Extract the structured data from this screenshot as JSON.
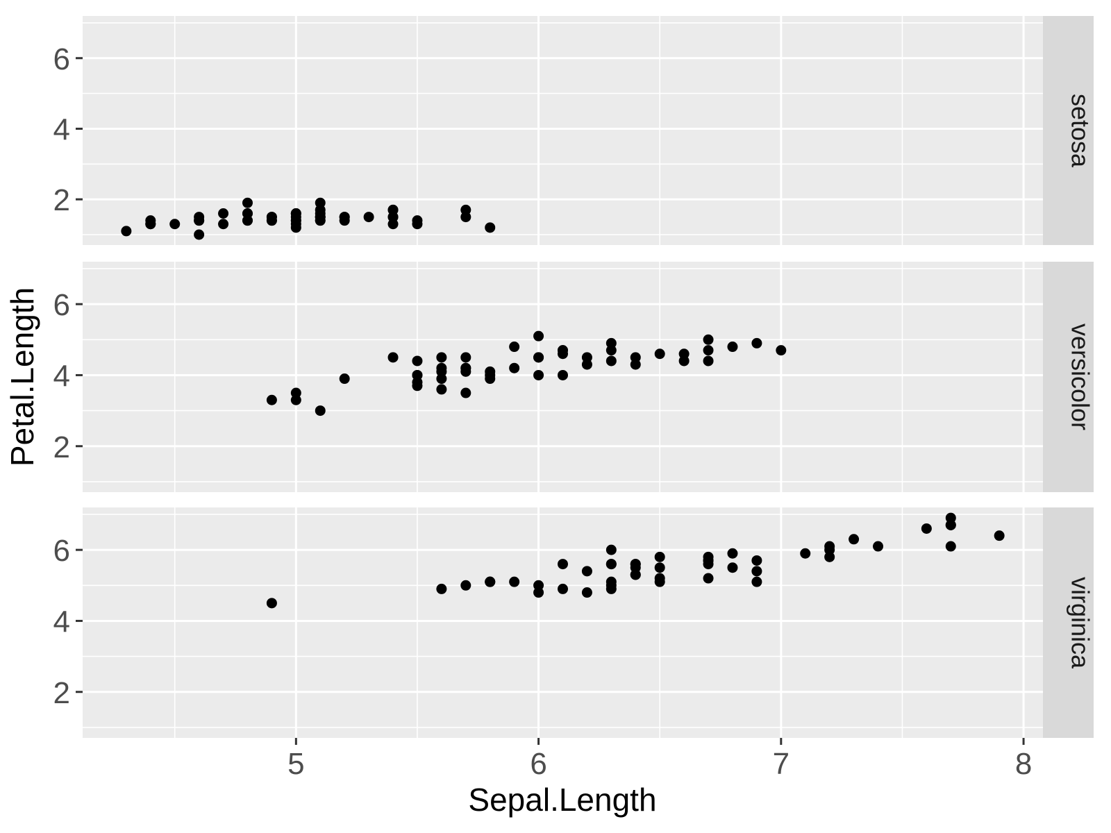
{
  "colors": {
    "figure_background": "#FFFFFF",
    "panel_background": "#EBEBEB",
    "strip_background": "#D9D9D9",
    "gridline": "#FFFFFF",
    "point": "#000000",
    "tick_label": "#4D4D4D",
    "tick_mark": "#333333",
    "axis_title": "#000000",
    "strip_text": "#1A1A1A"
  },
  "chart_data": {
    "type": "scatter",
    "title": "",
    "xlabel": "Sepal.Length",
    "ylabel": "Petal.Length",
    "facet_variable_values": [
      "setosa",
      "versicolor",
      "virginica"
    ],
    "x_ticks": [
      5,
      6,
      7,
      8
    ],
    "y_ticks": [
      2,
      4,
      6
    ],
    "x_minor_gridlines": [
      4.5,
      5.5,
      6.5,
      7.5
    ],
    "y_minor_gridlines": [
      1,
      3,
      5,
      7
    ],
    "xlim": [
      4.12,
      8.08
    ],
    "ylim": [
      0.705,
      7.195
    ],
    "grid": "on",
    "legend": "none",
    "facets": [
      {
        "label": "setosa",
        "points": [
          [
            5.1,
            1.4
          ],
          [
            4.9,
            1.4
          ],
          [
            4.7,
            1.3
          ],
          [
            4.6,
            1.5
          ],
          [
            5.0,
            1.4
          ],
          [
            5.4,
            1.7
          ],
          [
            4.6,
            1.4
          ],
          [
            5.0,
            1.5
          ],
          [
            4.4,
            1.4
          ],
          [
            4.9,
            1.5
          ],
          [
            5.4,
            1.5
          ],
          [
            4.8,
            1.6
          ],
          [
            4.8,
            1.4
          ],
          [
            4.3,
            1.1
          ],
          [
            5.8,
            1.2
          ],
          [
            5.7,
            1.5
          ],
          [
            5.4,
            1.3
          ],
          [
            5.1,
            1.4
          ],
          [
            5.7,
            1.7
          ],
          [
            5.1,
            1.5
          ],
          [
            5.4,
            1.7
          ],
          [
            5.1,
            1.5
          ],
          [
            4.6,
            1.0
          ],
          [
            5.1,
            1.7
          ],
          [
            4.8,
            1.9
          ],
          [
            5.0,
            1.6
          ],
          [
            5.0,
            1.6
          ],
          [
            5.2,
            1.5
          ],
          [
            5.2,
            1.4
          ],
          [
            4.7,
            1.6
          ],
          [
            4.8,
            1.6
          ],
          [
            5.4,
            1.5
          ],
          [
            5.2,
            1.5
          ],
          [
            5.5,
            1.4
          ],
          [
            4.9,
            1.5
          ],
          [
            5.0,
            1.2
          ],
          [
            5.5,
            1.3
          ],
          [
            4.9,
            1.4
          ],
          [
            4.4,
            1.3
          ],
          [
            5.1,
            1.5
          ],
          [
            5.0,
            1.3
          ],
          [
            4.5,
            1.3
          ],
          [
            4.4,
            1.3
          ],
          [
            5.0,
            1.6
          ],
          [
            5.1,
            1.9
          ],
          [
            4.8,
            1.4
          ],
          [
            5.1,
            1.6
          ],
          [
            4.6,
            1.4
          ],
          [
            5.3,
            1.5
          ],
          [
            5.0,
            1.4
          ]
        ]
      },
      {
        "label": "versicolor",
        "points": [
          [
            7.0,
            4.7
          ],
          [
            6.4,
            4.5
          ],
          [
            6.9,
            4.9
          ],
          [
            5.5,
            4.0
          ],
          [
            6.5,
            4.6
          ],
          [
            5.7,
            4.5
          ],
          [
            6.3,
            4.7
          ],
          [
            4.9,
            3.3
          ],
          [
            6.6,
            4.6
          ],
          [
            5.2,
            3.9
          ],
          [
            5.0,
            3.5
          ],
          [
            5.9,
            4.2
          ],
          [
            6.0,
            4.0
          ],
          [
            6.1,
            4.7
          ],
          [
            5.6,
            3.6
          ],
          [
            6.7,
            4.4
          ],
          [
            5.6,
            4.5
          ],
          [
            5.8,
            4.1
          ],
          [
            6.2,
            4.5
          ],
          [
            5.6,
            3.9
          ],
          [
            5.9,
            4.8
          ],
          [
            6.1,
            4.0
          ],
          [
            6.3,
            4.9
          ],
          [
            6.1,
            4.7
          ],
          [
            6.4,
            4.3
          ],
          [
            6.6,
            4.4
          ],
          [
            6.8,
            4.8
          ],
          [
            6.7,
            5.0
          ],
          [
            6.0,
            4.5
          ],
          [
            5.7,
            3.5
          ],
          [
            5.5,
            3.8
          ],
          [
            5.5,
            3.7
          ],
          [
            5.8,
            3.9
          ],
          [
            6.0,
            5.1
          ],
          [
            5.4,
            4.5
          ],
          [
            6.0,
            4.5
          ],
          [
            6.7,
            4.7
          ],
          [
            6.3,
            4.4
          ],
          [
            5.6,
            4.1
          ],
          [
            5.5,
            4.0
          ],
          [
            5.5,
            4.4
          ],
          [
            6.1,
            4.6
          ],
          [
            5.8,
            4.0
          ],
          [
            5.0,
            3.3
          ],
          [
            5.6,
            4.2
          ],
          [
            5.7,
            4.2
          ],
          [
            5.7,
            4.2
          ],
          [
            6.2,
            4.3
          ],
          [
            5.1,
            3.0
          ],
          [
            5.7,
            4.1
          ]
        ]
      },
      {
        "label": "virginica",
        "points": [
          [
            6.3,
            6.0
          ],
          [
            5.8,
            5.1
          ],
          [
            7.1,
            5.9
          ],
          [
            6.3,
            5.6
          ],
          [
            6.5,
            5.8
          ],
          [
            7.6,
            6.6
          ],
          [
            4.9,
            4.5
          ],
          [
            7.3,
            6.3
          ],
          [
            6.7,
            5.8
          ],
          [
            7.2,
            6.1
          ],
          [
            6.5,
            5.1
          ],
          [
            6.4,
            5.3
          ],
          [
            6.8,
            5.5
          ],
          [
            5.7,
            5.0
          ],
          [
            5.8,
            5.1
          ],
          [
            6.4,
            5.3
          ],
          [
            6.5,
            5.5
          ],
          [
            7.7,
            6.7
          ],
          [
            7.7,
            6.9
          ],
          [
            6.0,
            5.0
          ],
          [
            6.9,
            5.7
          ],
          [
            5.6,
            4.9
          ],
          [
            7.7,
            6.7
          ],
          [
            6.3,
            4.9
          ],
          [
            6.7,
            5.7
          ],
          [
            7.2,
            6.0
          ],
          [
            6.2,
            4.8
          ],
          [
            6.1,
            4.9
          ],
          [
            6.4,
            5.6
          ],
          [
            7.2,
            5.8
          ],
          [
            7.4,
            6.1
          ],
          [
            7.9,
            6.4
          ],
          [
            6.4,
            5.6
          ],
          [
            6.3,
            5.1
          ],
          [
            6.1,
            5.6
          ],
          [
            7.7,
            6.1
          ],
          [
            6.3,
            5.6
          ],
          [
            6.4,
            5.5
          ],
          [
            6.0,
            4.8
          ],
          [
            6.9,
            5.4
          ],
          [
            6.7,
            5.6
          ],
          [
            6.9,
            5.1
          ],
          [
            5.8,
            5.1
          ],
          [
            6.8,
            5.9
          ],
          [
            6.7,
            5.7
          ],
          [
            6.7,
            5.2
          ],
          [
            6.3,
            5.0
          ],
          [
            6.5,
            5.2
          ],
          [
            6.2,
            5.4
          ],
          [
            5.9,
            5.1
          ]
        ]
      }
    ]
  }
}
